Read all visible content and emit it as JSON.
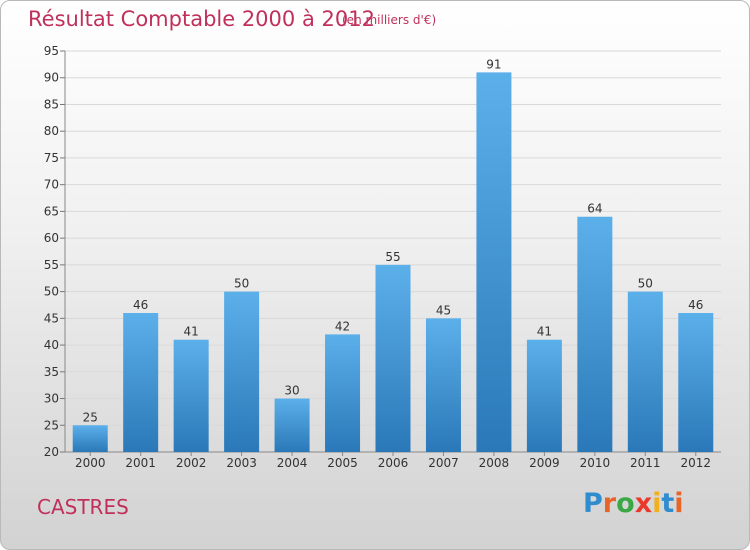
{
  "header": {
    "title": "Résultat Comptable 2000 à 2012",
    "subtitle": "(en milliers d'€)"
  },
  "footer": {
    "place": "CASTRES",
    "brand": [
      "P",
      "r",
      "o",
      "x",
      "i",
      "t",
      "i"
    ],
    "brand_colors": [
      "#2f8ccf",
      "#e8652a",
      "#3aa845",
      "#e83a2a",
      "#f0b020",
      "#2f8ccf",
      "#e8652a"
    ]
  },
  "colors": {
    "accent": "#c0305a",
    "bar_top": "#5cb0ea",
    "bar_bottom": "#2a78b8",
    "grid": "#d9d9d9",
    "axis_text": "#333333"
  },
  "chart_data": {
    "type": "bar",
    "title": "Résultat Comptable 2000 à 2012",
    "subtitle": "(en milliers d'€)",
    "categories": [
      "2000",
      "2001",
      "2002",
      "2003",
      "2004",
      "2005",
      "2006",
      "2007",
      "2008",
      "2009",
      "2010",
      "2011",
      "2012"
    ],
    "values": [
      25,
      46,
      41,
      50,
      30,
      42,
      55,
      45,
      91,
      41,
      64,
      50,
      46
    ],
    "ylim": [
      20,
      95
    ],
    "yticks": [
      20,
      25,
      30,
      35,
      40,
      45,
      50,
      55,
      60,
      65,
      70,
      75,
      80,
      85,
      90,
      95
    ],
    "grid": true,
    "data_labels": true
  }
}
